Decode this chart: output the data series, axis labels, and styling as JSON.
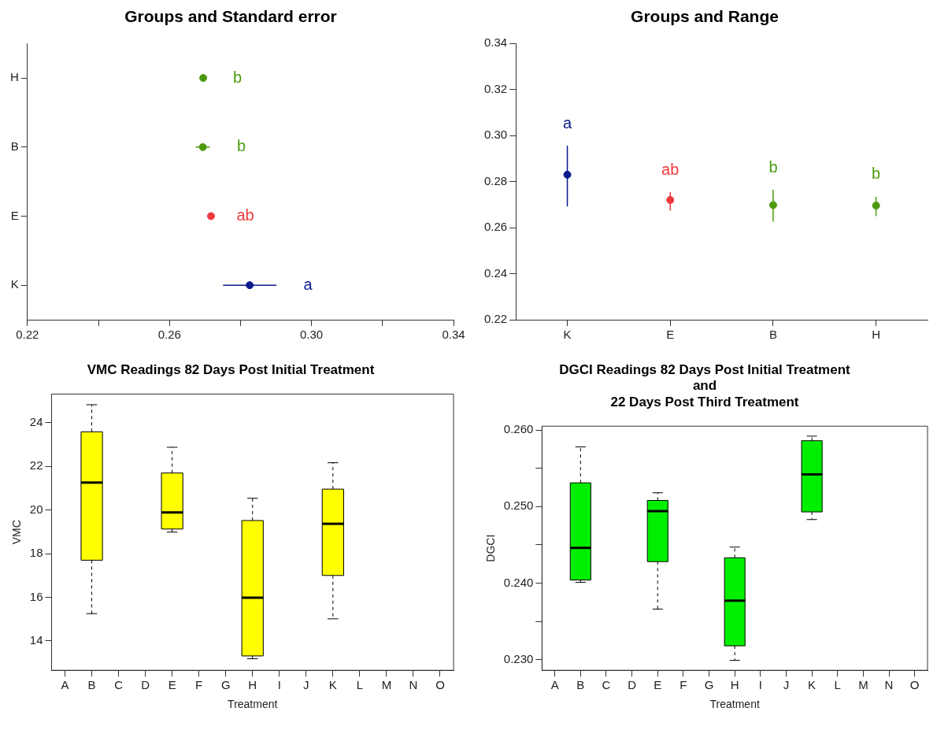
{
  "chart_data": [
    {
      "type": "scatter",
      "orientation": "horizontal",
      "title": "Groups and Standard error",
      "categories": [
        "H",
        "B",
        "E",
        "K"
      ],
      "values": [
        0.2695,
        0.2694,
        0.2717,
        0.2826
      ],
      "errors": [
        0.0008,
        0.002,
        0.0008,
        0.0075
      ],
      "colors": [
        "#4d9a0f",
        "#4d9a0f",
        "#f0393c",
        "#0b1a8c"
      ],
      "xlim": [
        0.22,
        0.34
      ],
      "xticks": [
        0.22,
        {
          "value": 0.24,
          "label": null
        },
        0.26,
        {
          "value": 0.28,
          "label": null
        },
        {
          "value": 0.3,
          "label": "0.30"
        },
        {
          "value": 0.32,
          "label": null
        },
        0.34
      ],
      "marker": "circle",
      "value_labels": [
        "b",
        "b",
        "ab",
        "a"
      ]
    },
    {
      "type": "scatter",
      "title": "Groups and Range",
      "categories": [
        "K",
        "E",
        "B",
        "H"
      ],
      "values": [
        0.283,
        0.272,
        0.2698,
        0.2696
      ],
      "errors": [
        [
          0.2692,
          0.2956
        ],
        [
          0.2674,
          0.2754
        ],
        [
          0.2626,
          0.2764
        ],
        [
          0.265,
          0.2734
        ]
      ],
      "colors": [
        "#0b1a8c",
        "#f0393c",
        "#4d9a0f",
        "#4d9a0f"
      ],
      "ylim": [
        0.22,
        0.34
      ],
      "yticks": [
        0.22,
        0.24,
        0.26,
        0.28,
        {
          "value": 0.3,
          "label": "0.30"
        },
        0.32,
        0.34
      ],
      "marker": "circle",
      "value_labels": [
        "a",
        "ab",
        "b",
        "b"
      ]
    },
    {
      "type": "box",
      "title": "VMC Readings 82 Days Post Initial Treatment",
      "xlabel": "Treatment",
      "ylabel": "VMC",
      "categories": [
        "A",
        "B",
        "C",
        "D",
        "E",
        "F",
        "G",
        "H",
        "I",
        "J",
        "K",
        "L",
        "M",
        "N",
        "O"
      ],
      "color": "#ffff00",
      "ylim": [
        12.65,
        25.32
      ],
      "yticks": [
        14,
        16,
        18,
        20,
        22,
        24
      ],
      "boxes": [
        null,
        {
          "low": 15.25,
          "q1": 17.7,
          "median": 21.26,
          "q3": 23.59,
          "high": 24.83
        },
        null,
        null,
        {
          "low": 18.99,
          "q1": 19.13,
          "median": 19.89,
          "q3": 21.7,
          "high": 22.88
        },
        null,
        null,
        {
          "low": 13.18,
          "q1": 13.31,
          "median": 15.98,
          "q3": 19.52,
          "high": 20.54
        },
        null,
        null,
        {
          "low": 15.01,
          "q1": 17.0,
          "median": 19.37,
          "q3": 20.96,
          "high": 22.17
        },
        null,
        null,
        null,
        null
      ]
    },
    {
      "type": "box",
      "title": "DGCI Readings 82 Days Post Initial Treatment\nand\n22 Days Post Third Treatment",
      "xlabel": "Treatment",
      "ylabel": "DGCI",
      "categories": [
        "A",
        "B",
        "C",
        "D",
        "E",
        "F",
        "G",
        "H",
        "I",
        "J",
        "K",
        "L",
        "M",
        "N",
        "O"
      ],
      "color": "#00ee00",
      "ylim": [
        0.2286,
        0.2605
      ],
      "yticks": [
        {
          "value": 0.23,
          "label": "0.230"
        },
        {
          "value": 0.235,
          "label": null
        },
        {
          "value": 0.24,
          "label": "0.240"
        },
        {
          "value": 0.245,
          "label": null
        },
        {
          "value": 0.25,
          "label": "0.250"
        },
        {
          "value": 0.255,
          "label": null
        },
        {
          "value": 0.26,
          "label": "0.260"
        }
      ],
      "boxes": [
        null,
        {
          "low": 0.2401,
          "q1": 0.2404,
          "median": 0.2446,
          "q3": 0.2531,
          "high": 0.2578
        },
        null,
        null,
        {
          "low": 0.2366,
          "q1": 0.2428,
          "median": 0.2494,
          "q3": 0.2508,
          "high": 0.2518
        },
        null,
        null,
        {
          "low": 0.2299,
          "q1": 0.2318,
          "median": 0.2377,
          "q3": 0.2433,
          "high": 0.2447
        },
        null,
        null,
        {
          "low": 0.2483,
          "q1": 0.2493,
          "median": 0.2542,
          "q3": 0.2586,
          "high": 0.2592
        },
        null,
        null,
        null,
        null
      ]
    }
  ]
}
